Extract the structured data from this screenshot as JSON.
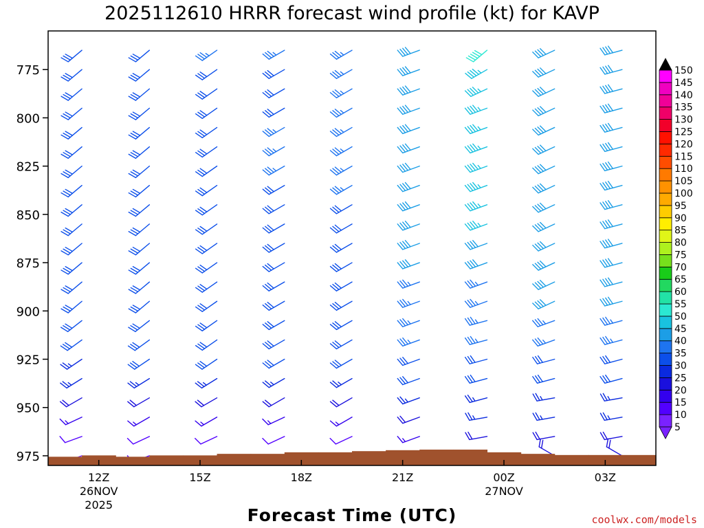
{
  "chart_data": {
    "type": "wind_barb_profile",
    "title": "2025112610 HRRR forecast wind profile (kt) for KAVP",
    "xlabel": "Forecast Time (UTC)",
    "ylabel": "",
    "credit": "coolwx.com/models",
    "y_axis": {
      "units": "hPa",
      "range": [
        980,
        755
      ],
      "ticks": [
        775,
        800,
        825,
        850,
        875,
        900,
        925,
        950,
        975
      ]
    },
    "x_axis": {
      "range_hours": [
        -1.5,
        16.5
      ],
      "ticks": [
        {
          "hour": 0,
          "label": "12Z",
          "date": "26NOV",
          "year": "2025"
        },
        {
          "hour": 3,
          "label": "15Z",
          "date": "",
          "year": ""
        },
        {
          "hour": 6,
          "label": "18Z",
          "date": "",
          "year": ""
        },
        {
          "hour": 9,
          "label": "21Z",
          "date": "",
          "year": ""
        },
        {
          "hour": 12,
          "label": "00Z",
          "date": "27NOV",
          "year": ""
        },
        {
          "hour": 15,
          "label": "03Z",
          "date": "",
          "year": ""
        }
      ]
    },
    "levels_hpa": [
      765,
      775,
      785,
      795,
      805,
      815,
      825,
      835,
      845,
      855,
      865,
      875,
      885,
      895,
      905,
      915,
      925,
      935,
      945,
      955,
      965,
      975
    ],
    "times_hours": [
      -0.5,
      1.5,
      3.5,
      5.5,
      7.5,
      9.5,
      11.5,
      13.5,
      15.5
    ],
    "speed_columns_kt": [
      [
        30,
        30,
        30,
        30,
        30,
        30,
        30,
        30,
        30,
        30,
        30,
        30,
        30,
        30,
        30,
        30,
        25,
        25,
        20,
        15,
        10,
        5
      ],
      [
        30,
        30,
        30,
        30,
        30,
        30,
        30,
        30,
        30,
        30,
        30,
        30,
        30,
        30,
        30,
        30,
        30,
        25,
        20,
        15,
        10,
        10
      ],
      [
        35,
        30,
        30,
        30,
        30,
        30,
        30,
        30,
        30,
        30,
        30,
        30,
        30,
        30,
        30,
        30,
        30,
        25,
        20,
        15,
        10,
        10
      ],
      [
        35,
        30,
        30,
        30,
        35,
        35,
        35,
        30,
        30,
        30,
        30,
        30,
        30,
        30,
        30,
        30,
        30,
        25,
        20,
        15,
        10,
        10
      ],
      [
        35,
        35,
        35,
        35,
        35,
        35,
        35,
        35,
        30,
        30,
        30,
        30,
        30,
        30,
        30,
        30,
        30,
        25,
        20,
        15,
        10,
        10
      ],
      [
        40,
        40,
        40,
        40,
        40,
        40,
        40,
        40,
        40,
        40,
        40,
        40,
        35,
        35,
        35,
        35,
        30,
        30,
        25,
        20,
        15,
        15
      ],
      [
        50,
        45,
        45,
        45,
        45,
        45,
        45,
        45,
        45,
        45,
        40,
        40,
        35,
        35,
        35,
        35,
        30,
        30,
        25,
        25,
        20,
        20
      ],
      [
        40,
        40,
        40,
        40,
        40,
        40,
        40,
        40,
        40,
        40,
        40,
        40,
        40,
        40,
        35,
        35,
        30,
        30,
        25,
        25,
        20,
        20
      ],
      [
        40,
        40,
        40,
        40,
        40,
        40,
        40,
        40,
        40,
        40,
        40,
        40,
        40,
        40,
        35,
        35,
        30,
        30,
        25,
        25,
        20,
        20
      ]
    ],
    "direction_columns_deg": [
      [
        230,
        230,
        230,
        230,
        230,
        230,
        230,
        230,
        230,
        230,
        230,
        230,
        230,
        230,
        232,
        234,
        236,
        238,
        240,
        245,
        250,
        250
      ],
      [
        230,
        230,
        230,
        230,
        230,
        230,
        230,
        230,
        230,
        230,
        230,
        230,
        230,
        230,
        232,
        234,
        236,
        238,
        240,
        240,
        245,
        250
      ],
      [
        235,
        235,
        235,
        235,
        235,
        235,
        235,
        235,
        235,
        235,
        235,
        235,
        235,
        235,
        235,
        235,
        236,
        238,
        240,
        240,
        245,
        245
      ],
      [
        240,
        240,
        240,
        240,
        240,
        240,
        240,
        240,
        240,
        240,
        240,
        240,
        240,
        240,
        240,
        240,
        240,
        240,
        240,
        245,
        245,
        245
      ],
      [
        240,
        240,
        240,
        240,
        240,
        240,
        240,
        240,
        240,
        240,
        240,
        240,
        240,
        240,
        240,
        240,
        240,
        240,
        240,
        240,
        245,
        245
      ],
      [
        250,
        250,
        250,
        250,
        250,
        250,
        250,
        250,
        250,
        250,
        250,
        250,
        250,
        250,
        250,
        250,
        250,
        250,
        250,
        250,
        250,
        250
      ],
      [
        230,
        240,
        245,
        250,
        250,
        250,
        250,
        250,
        250,
        250,
        250,
        250,
        250,
        250,
        255,
        255,
        255,
        255,
        255,
        260,
        260,
        260
      ],
      [
        245,
        245,
        245,
        245,
        245,
        245,
        245,
        245,
        245,
        245,
        245,
        245,
        245,
        245,
        250,
        250,
        255,
        255,
        260,
        260,
        260,
        300
      ],
      [
        255,
        255,
        255,
        255,
        255,
        255,
        255,
        255,
        255,
        255,
        255,
        255,
        255,
        255,
        255,
        255,
        255,
        255,
        260,
        260,
        260,
        300
      ]
    ],
    "ground_surface": {
      "description": "terrain (surface pressure) along forecast time",
      "hours": [
        -1.5,
        -0.5,
        0.5,
        1.5,
        2.5,
        3.5,
        4.5,
        5.5,
        6.5,
        7.5,
        8.5,
        9.5,
        10.5,
        11.5,
        12.5,
        13.5,
        14.5,
        15.5,
        16.5
      ],
      "pressure_hpa": [
        975.5,
        974.8,
        975.5,
        974.8,
        974.8,
        974.0,
        974.0,
        973.2,
        973.2,
        972.6,
        972.1,
        971.8,
        971.8,
        973.2,
        974.0,
        974.6,
        974.6,
        974.6,
        974.6
      ]
    },
    "colorbar": {
      "units": "kt",
      "levels": [
        5,
        10,
        15,
        20,
        25,
        30,
        35,
        40,
        45,
        50,
        55,
        60,
        65,
        70,
        75,
        80,
        85,
        90,
        95,
        100,
        105,
        110,
        115,
        120,
        125,
        130,
        135,
        140,
        145,
        150
      ],
      "colors": [
        "#7a22ff",
        "#5200ff",
        "#3300ee",
        "#1a10dd",
        "#0a2adf",
        "#0c4fea",
        "#1e74f0",
        "#1c9ee6",
        "#19c2e0",
        "#2be8d2",
        "#22e2a6",
        "#22d860",
        "#19cc19",
        "#77e01c",
        "#aef11e",
        "#e0f518",
        "#ffee00",
        "#ffcc00",
        "#ffaa00",
        "#ff9200",
        "#ff7a00",
        "#ff4d00",
        "#ff2a00",
        "#ff1100",
        "#f2002a",
        "#f00068",
        "#f00098",
        "#f000c0",
        "#ff00ff",
        "#ff00ff"
      ]
    },
    "colors": {
      "ground": "#a0522d",
      "axis": "#000000",
      "credit": "#cc2222"
    }
  }
}
